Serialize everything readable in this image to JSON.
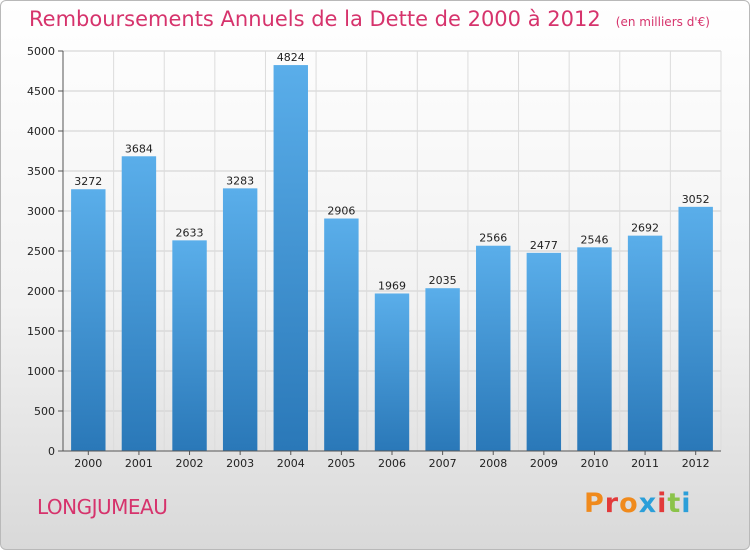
{
  "header": {
    "title": "Remboursements Annuels de la Dette de 2000 à 2012",
    "unit": "(en milliers d'€)"
  },
  "footer": {
    "commune": "LONGJUMEAU",
    "logo": "Proxiti"
  },
  "colors": {
    "bar_light": "#5aaeea",
    "bar_dark": "#2a78b8",
    "title": "#d6336c",
    "logo_letters": [
      "#f08a1c",
      "#e23a3a",
      "#f08a1c",
      "#2b9fd9",
      "#e23a3a",
      "#8bc34a",
      "#2b9fd9"
    ]
  },
  "chart_data": {
    "type": "bar",
    "title": "Remboursements Annuels de la Dette de 2000 à 2012",
    "subtitle": "(en milliers d'€)",
    "categories": [
      "2000",
      "2001",
      "2002",
      "2003",
      "2004",
      "2005",
      "2006",
      "2007",
      "2008",
      "2009",
      "2010",
      "2011",
      "2012"
    ],
    "values": [
      3272,
      3684,
      2633,
      3283,
      4824,
      2906,
      1969,
      2035,
      2566,
      2477,
      2546,
      2692,
      3052
    ],
    "ylim": [
      0,
      5000
    ],
    "yticks": [
      0,
      500,
      1000,
      1500,
      2000,
      2500,
      3000,
      3500,
      4000,
      4500,
      5000
    ],
    "grid": true,
    "legend": "none"
  }
}
